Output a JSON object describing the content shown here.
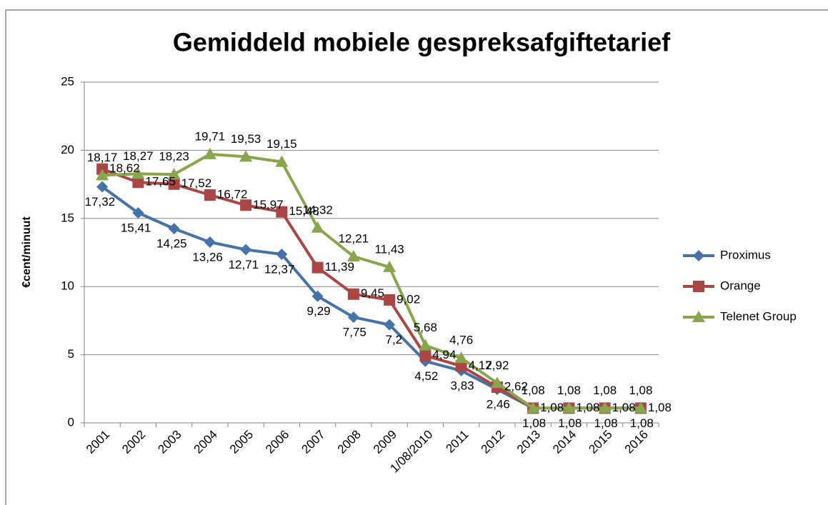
{
  "chart_data": {
    "type": "line",
    "title": "Gemiddeld mobiele gespreksafgiftetarief",
    "y_label": "€cent/minuut",
    "categories": [
      "2001",
      "2002",
      "2003",
      "2004",
      "2005",
      "2006",
      "2007",
      "2008",
      "2009",
      "1/08/2010",
      "2011",
      "2012",
      "2013",
      "2014",
      "2015",
      "2016"
    ],
    "series": [
      {
        "name": "Proximus",
        "color": "#4572a7",
        "marker": "diamond",
        "values": [
          17.32,
          15.41,
          14.25,
          13.26,
          12.71,
          12.37,
          9.29,
          7.75,
          7.2,
          4.52,
          3.83,
          2.46,
          1.08,
          1.08,
          1.08,
          1.08
        ],
        "value_labels": [
          "17,32",
          "15,41",
          "14,25",
          "13,26",
          "12,71",
          "12,37",
          "9,29",
          "7,75",
          "7,2",
          "4,52",
          "3,83",
          "2,46",
          "1,08",
          "1,08",
          "1,08",
          "1,08"
        ]
      },
      {
        "name": "Orange",
        "color": "#aa4643",
        "marker": "square",
        "values": [
          18.62,
          17.65,
          17.52,
          16.72,
          15.97,
          15.48,
          11.39,
          9.45,
          9.02,
          4.94,
          4.17,
          2.62,
          1.08,
          1.08,
          1.08,
          1.08
        ],
        "value_labels": [
          "18,62",
          "17,65",
          "17,52",
          "16,72",
          "15,97",
          "15,48",
          "11,39",
          "9,45",
          "9,02",
          "4,94",
          "4,17",
          "2,62",
          "1,08",
          "1,08",
          "1,08",
          "1,08"
        ]
      },
      {
        "name": "Telenet Group",
        "color": "#89a54e",
        "marker": "triangle",
        "values": [
          18.17,
          18.27,
          18.23,
          19.71,
          19.53,
          19.15,
          14.32,
          12.21,
          11.43,
          5.68,
          4.76,
          2.92,
          1.08,
          1.08,
          1.08,
          1.08
        ],
        "value_labels": [
          "18,17",
          "18,27",
          "18,23",
          "19,71",
          "19,53",
          "19,15",
          "14,32",
          "12,21",
          "11,43",
          "5,68",
          "4,76",
          "2,92",
          "1,08",
          "1,08",
          "1,08",
          "1,08"
        ]
      }
    ],
    "ylim": [
      0,
      25
    ],
    "yticks": [
      0,
      5,
      10,
      15,
      20,
      25
    ],
    "grid": true,
    "legend": "right"
  }
}
